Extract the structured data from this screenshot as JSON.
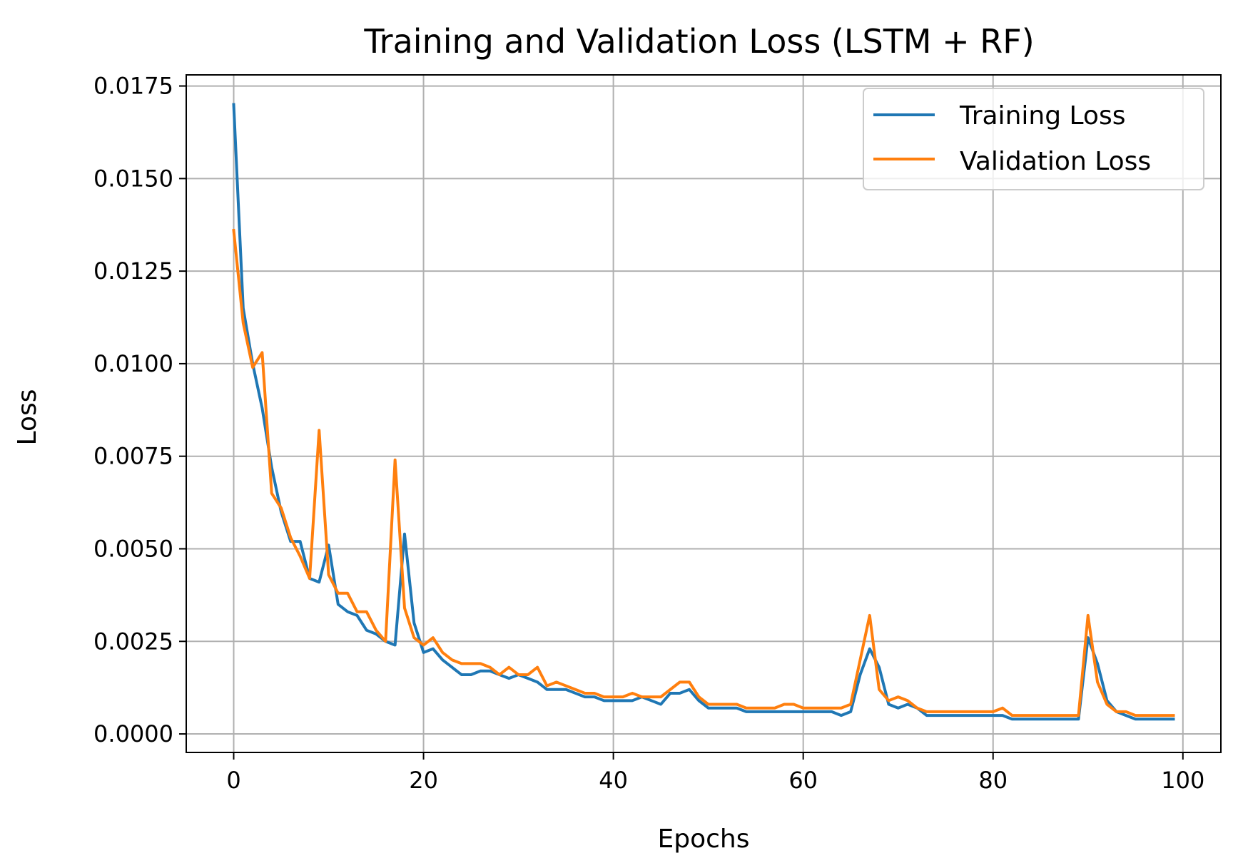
{
  "chart_data": {
    "type": "line",
    "title": "Training and Validation Loss (LSTM + RF)",
    "xlabel": "Epochs",
    "ylabel": "Loss",
    "xlim": [
      -5,
      104
    ],
    "ylim": [
      -0.0005,
      0.0178
    ],
    "xticks": [
      0,
      20,
      40,
      60,
      80,
      100
    ],
    "xtick_labels": [
      "0",
      "20",
      "40",
      "60",
      "80",
      "100"
    ],
    "yticks": [
      0.0,
      0.0025,
      0.005,
      0.0075,
      0.01,
      0.0125,
      0.015,
      0.0175
    ],
    "ytick_labels": [
      "0.0000",
      "0.0025",
      "0.0050",
      "0.0075",
      "0.0100",
      "0.0125",
      "0.0150",
      "0.0175"
    ],
    "grid": true,
    "legend_position": "top-right",
    "series": [
      {
        "name": "Training Loss",
        "color": "#1f77b4",
        "values": [
          0.017,
          0.0115,
          0.01,
          0.0088,
          0.0072,
          0.006,
          0.0052,
          0.0052,
          0.0042,
          0.0041,
          0.0051,
          0.0035,
          0.0033,
          0.0032,
          0.0028,
          0.0027,
          0.0025,
          0.0024,
          0.0054,
          0.003,
          0.0022,
          0.0023,
          0.002,
          0.0018,
          0.0016,
          0.0016,
          0.0017,
          0.0017,
          0.0016,
          0.0015,
          0.0016,
          0.0015,
          0.0014,
          0.0012,
          0.0012,
          0.0012,
          0.0011,
          0.001,
          0.001,
          0.0009,
          0.0009,
          0.0009,
          0.0009,
          0.001,
          0.0009,
          0.0008,
          0.0011,
          0.0011,
          0.0012,
          0.0009,
          0.0007,
          0.0007,
          0.0007,
          0.0007,
          0.0006,
          0.0006,
          0.0006,
          0.0006,
          0.0006,
          0.0006,
          0.0006,
          0.0006,
          0.0006,
          0.0006,
          0.0005,
          0.0006,
          0.0016,
          0.0023,
          0.0018,
          0.0008,
          0.0007,
          0.0008,
          0.0007,
          0.0005,
          0.0005,
          0.0005,
          0.0005,
          0.0005,
          0.0005,
          0.0005,
          0.0005,
          0.0005,
          0.0004,
          0.0004,
          0.0004,
          0.0004,
          0.0004,
          0.0004,
          0.0004,
          0.0004,
          0.0026,
          0.0019,
          0.0009,
          0.0006,
          0.0005,
          0.0004,
          0.0004,
          0.0004,
          0.0004,
          0.0004
        ]
      },
      {
        "name": "Validation Loss",
        "color": "#ff7f0e",
        "values": [
          0.0136,
          0.0111,
          0.0099,
          0.0103,
          0.0065,
          0.0061,
          0.0053,
          0.0048,
          0.0042,
          0.0082,
          0.0043,
          0.0038,
          0.0038,
          0.0033,
          0.0033,
          0.0028,
          0.0025,
          0.0074,
          0.0034,
          0.0026,
          0.0024,
          0.0026,
          0.0022,
          0.002,
          0.0019,
          0.0019,
          0.0019,
          0.0018,
          0.0016,
          0.0018,
          0.0016,
          0.0016,
          0.0018,
          0.0013,
          0.0014,
          0.0013,
          0.0012,
          0.0011,
          0.0011,
          0.001,
          0.001,
          0.001,
          0.0011,
          0.001,
          0.001,
          0.001,
          0.0012,
          0.0014,
          0.0014,
          0.001,
          0.0008,
          0.0008,
          0.0008,
          0.0008,
          0.0007,
          0.0007,
          0.0007,
          0.0007,
          0.0008,
          0.0008,
          0.0007,
          0.0007,
          0.0007,
          0.0007,
          0.0007,
          0.0008,
          0.002,
          0.0032,
          0.0012,
          0.0009,
          0.001,
          0.0009,
          0.0007,
          0.0006,
          0.0006,
          0.0006,
          0.0006,
          0.0006,
          0.0006,
          0.0006,
          0.0006,
          0.0007,
          0.0005,
          0.0005,
          0.0005,
          0.0005,
          0.0005,
          0.0005,
          0.0005,
          0.0005,
          0.0032,
          0.0014,
          0.0008,
          0.0006,
          0.0006,
          0.0005,
          0.0005,
          0.0005,
          0.0005,
          0.0005
        ]
      }
    ]
  }
}
